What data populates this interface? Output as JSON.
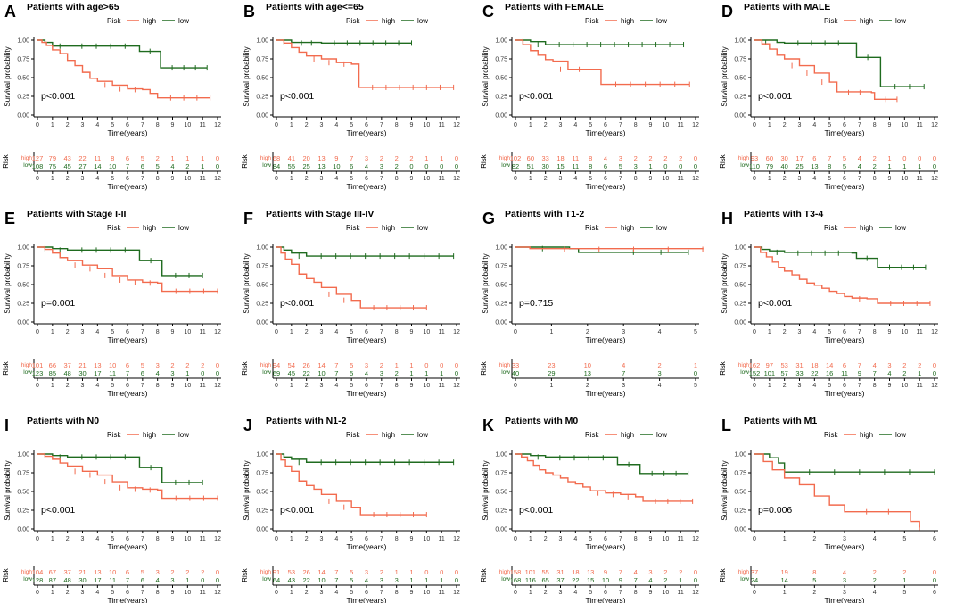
{
  "colors": {
    "high": "#F26B4E",
    "low": "#1F6B1F"
  },
  "risk_title": "Risk",
  "legend_high": "high",
  "legend_low": "low",
  "xlabel": "Time(years)",
  "ylabel": "Survival probability",
  "y_ticks": [
    "0.00",
    "0.25",
    "0.50",
    "0.75",
    "1.00"
  ],
  "risk_row_high": "high",
  "risk_row_low": "low",
  "chart_data": [
    {
      "letter": "A",
      "title": "Patients with age>65",
      "type": "line",
      "xmax": 12,
      "p": "p<0.001",
      "high_curve": [
        [
          0,
          1
        ],
        [
          0.3,
          0.97
        ],
        [
          0.6,
          0.93
        ],
        [
          1,
          0.87
        ],
        [
          1.5,
          0.82
        ],
        [
          2,
          0.73
        ],
        [
          2.5,
          0.66
        ],
        [
          3,
          0.57
        ],
        [
          3.5,
          0.49
        ],
        [
          4,
          0.45
        ],
        [
          5,
          0.4
        ],
        [
          6,
          0.35
        ],
        [
          7,
          0.34
        ],
        [
          7.5,
          0.29
        ],
        [
          8,
          0.23
        ],
        [
          11.5,
          0.23
        ]
      ],
      "low_curve": [
        [
          0,
          1
        ],
        [
          0.5,
          0.97
        ],
        [
          1,
          0.92
        ],
        [
          2,
          0.92
        ],
        [
          6.8,
          0.92
        ],
        [
          6.8,
          0.85
        ],
        [
          8.2,
          0.85
        ],
        [
          8.2,
          0.63
        ],
        [
          11.3,
          0.63
        ]
      ],
      "risk_high": [
        "127",
        "79",
        "43",
        "22",
        "11",
        "8",
        "6",
        "5",
        "2",
        "1",
        "1",
        "1",
        "0"
      ],
      "risk_low": [
        "108",
        "75",
        "45",
        "27",
        "14",
        "10",
        "7",
        "6",
        "5",
        "4",
        "2",
        "1",
        "0"
      ]
    },
    {
      "letter": "B",
      "title": "Patients with age<=65",
      "type": "line",
      "xmax": 12,
      "p": "p<0.001",
      "high_curve": [
        [
          0,
          1
        ],
        [
          0.5,
          0.96
        ],
        [
          1,
          0.9
        ],
        [
          1.5,
          0.84
        ],
        [
          2,
          0.79
        ],
        [
          3,
          0.75
        ],
        [
          4,
          0.7
        ],
        [
          5,
          0.68
        ],
        [
          5.5,
          0.37
        ],
        [
          11.8,
          0.37
        ]
      ],
      "low_curve": [
        [
          0,
          1
        ],
        [
          1,
          0.97
        ],
        [
          3,
          0.96
        ],
        [
          9,
          0.96
        ]
      ],
      "risk_high": [
        "68",
        "41",
        "20",
        "13",
        "9",
        "7",
        "3",
        "2",
        "2",
        "2",
        "1",
        "1",
        "0"
      ],
      "risk_low": [
        "84",
        "55",
        "25",
        "13",
        "10",
        "6",
        "4",
        "3",
        "2",
        "0",
        "0",
        "0",
        "0"
      ]
    },
    {
      "letter": "C",
      "title": "Patients with FEMALE",
      "type": "line",
      "xmax": 12,
      "p": "p<0.001",
      "high_curve": [
        [
          0,
          1
        ],
        [
          0.5,
          0.94
        ],
        [
          1,
          0.86
        ],
        [
          1.5,
          0.8
        ],
        [
          2,
          0.74
        ],
        [
          2.5,
          0.72
        ],
        [
          3.5,
          0.61
        ],
        [
          5,
          0.61
        ],
        [
          5.7,
          0.41
        ],
        [
          11.6,
          0.41
        ]
      ],
      "low_curve": [
        [
          0,
          1
        ],
        [
          1,
          0.98
        ],
        [
          2,
          0.94
        ],
        [
          11.2,
          0.94
        ]
      ],
      "risk_high": [
        "102",
        "60",
        "33",
        "18",
        "11",
        "8",
        "4",
        "3",
        "2",
        "2",
        "2",
        "2",
        "0"
      ],
      "risk_low": [
        "82",
        "51",
        "30",
        "15",
        "11",
        "8",
        "6",
        "5",
        "3",
        "1",
        "0",
        "0",
        "0"
      ]
    },
    {
      "letter": "D",
      "title": "Patients with MALE",
      "type": "line",
      "xmax": 12,
      "p": "p<0.001",
      "high_curve": [
        [
          0,
          1
        ],
        [
          0.5,
          0.95
        ],
        [
          1,
          0.88
        ],
        [
          1.5,
          0.8
        ],
        [
          2,
          0.75
        ],
        [
          3,
          0.66
        ],
        [
          4,
          0.56
        ],
        [
          5,
          0.44
        ],
        [
          5.5,
          0.31
        ],
        [
          7.8,
          0.3
        ],
        [
          8,
          0.21
        ],
        [
          9.5,
          0.21
        ]
      ],
      "low_curve": [
        [
          0,
          1
        ],
        [
          1.5,
          0.97
        ],
        [
          2,
          0.96
        ],
        [
          6.5,
          0.96
        ],
        [
          6.8,
          0.77
        ],
        [
          8.3,
          0.77
        ],
        [
          8.4,
          0.38
        ],
        [
          11.3,
          0.38
        ]
      ],
      "risk_high": [
        "93",
        "60",
        "30",
        "17",
        "6",
        "7",
        "5",
        "4",
        "2",
        "1",
        "0",
        "0",
        "0"
      ],
      "risk_low": [
        "110",
        "79",
        "40",
        "25",
        "13",
        "8",
        "5",
        "4",
        "2",
        "1",
        "1",
        "1",
        "0"
      ]
    },
    {
      "letter": "E",
      "title": "Patients with Stage I-II",
      "type": "line",
      "xmax": 12,
      "p": "p=0.001",
      "high_curve": [
        [
          0,
          1
        ],
        [
          0.5,
          0.97
        ],
        [
          1,
          0.92
        ],
        [
          1.5,
          0.86
        ],
        [
          2,
          0.82
        ],
        [
          3,
          0.76
        ],
        [
          4,
          0.71
        ],
        [
          5,
          0.62
        ],
        [
          6,
          0.56
        ],
        [
          7,
          0.53
        ],
        [
          8,
          0.52
        ],
        [
          8.3,
          0.41
        ],
        [
          12,
          0.41
        ]
      ],
      "low_curve": [
        [
          0,
          1
        ],
        [
          1,
          0.98
        ],
        [
          2,
          0.96
        ],
        [
          6.8,
          0.96
        ],
        [
          6.8,
          0.82
        ],
        [
          8.3,
          0.82
        ],
        [
          8.3,
          0.62
        ],
        [
          11,
          0.62
        ]
      ],
      "risk_high": [
        "101",
        "66",
        "37",
        "21",
        "13",
        "10",
        "6",
        "5",
        "3",
        "2",
        "2",
        "2",
        "0"
      ],
      "risk_low": [
        "123",
        "85",
        "48",
        "30",
        "17",
        "11",
        "7",
        "6",
        "4",
        "3",
        "1",
        "0",
        "0"
      ]
    },
    {
      "letter": "F",
      "title": "Patients with Stage III-IV",
      "type": "line",
      "xmax": 12,
      "p": "p<0.001",
      "high_curve": [
        [
          0,
          1
        ],
        [
          0.3,
          0.92
        ],
        [
          0.6,
          0.84
        ],
        [
          1,
          0.77
        ],
        [
          1.5,
          0.64
        ],
        [
          2,
          0.58
        ],
        [
          2.5,
          0.53
        ],
        [
          3,
          0.46
        ],
        [
          4,
          0.37
        ],
        [
          5,
          0.29
        ],
        [
          5.6,
          0.19
        ],
        [
          10,
          0.19
        ]
      ],
      "low_curve": [
        [
          0,
          1
        ],
        [
          0.5,
          0.96
        ],
        [
          1,
          0.92
        ],
        [
          2,
          0.88
        ],
        [
          11.8,
          0.88
        ]
      ],
      "risk_high": [
        "94",
        "54",
        "26",
        "14",
        "7",
        "5",
        "3",
        "2",
        "1",
        "1",
        "0",
        "0",
        "0"
      ],
      "risk_low": [
        "69",
        "45",
        "22",
        "10",
        "7",
        "5",
        "4",
        "3",
        "2",
        "1",
        "1",
        "1",
        "0"
      ]
    },
    {
      "letter": "G",
      "title": "Patients with T1-2",
      "type": "line",
      "xmax": 5,
      "p": "p=0.715",
      "high_curve": [
        [
          0,
          1
        ],
        [
          0.4,
          0.98
        ],
        [
          5.2,
          0.97
        ]
      ],
      "low_curve": [
        [
          0,
          1
        ],
        [
          1.5,
          0.98
        ],
        [
          1.75,
          0.93
        ],
        [
          4.8,
          0.93
        ]
      ],
      "risk_high": [
        "33",
        "",
        "23",
        "",
        "10",
        "",
        "4",
        "",
        "2",
        "",
        "1"
      ],
      "risk_low": [
        "40",
        "",
        "29",
        "",
        "13",
        "",
        "7",
        "",
        "3",
        "",
        "0"
      ]
    },
    {
      "letter": "H",
      "title": "Patients with T3-4",
      "type": "line",
      "xmax": 12,
      "p": "p<0.001",
      "high_curve": [
        [
          0,
          1
        ],
        [
          0.4,
          0.93
        ],
        [
          0.8,
          0.87
        ],
        [
          1.2,
          0.8
        ],
        [
          1.6,
          0.73
        ],
        [
          2,
          0.68
        ],
        [
          2.5,
          0.63
        ],
        [
          3,
          0.57
        ],
        [
          3.5,
          0.52
        ],
        [
          4,
          0.49
        ],
        [
          4.5,
          0.45
        ],
        [
          5,
          0.41
        ],
        [
          5.5,
          0.38
        ],
        [
          6,
          0.34
        ],
        [
          6.5,
          0.32
        ],
        [
          7.5,
          0.31
        ],
        [
          8.2,
          0.25
        ],
        [
          11.7,
          0.25
        ]
      ],
      "low_curve": [
        [
          0,
          1
        ],
        [
          0.5,
          0.97
        ],
        [
          1,
          0.95
        ],
        [
          2,
          0.93
        ],
        [
          6.5,
          0.92
        ],
        [
          6.8,
          0.85
        ],
        [
          8.2,
          0.85
        ],
        [
          8.2,
          0.73
        ],
        [
          11.4,
          0.73
        ]
      ],
      "risk_high": [
        "162",
        "97",
        "53",
        "31",
        "18",
        "14",
        "6",
        "7",
        "4",
        "3",
        "2",
        "2",
        "0"
      ],
      "risk_low": [
        "152",
        "101",
        "57",
        "33",
        "22",
        "16",
        "11",
        "9",
        "7",
        "4",
        "2",
        "1",
        "0"
      ]
    },
    {
      "letter": "I",
      "title": "Patients with N0",
      "type": "line",
      "xmax": 12,
      "p": "p<0.001",
      "high_curve": [
        [
          0,
          1
        ],
        [
          0.5,
          0.97
        ],
        [
          1,
          0.93
        ],
        [
          1.5,
          0.88
        ],
        [
          2,
          0.84
        ],
        [
          3,
          0.77
        ],
        [
          4,
          0.72
        ],
        [
          5,
          0.63
        ],
        [
          6,
          0.55
        ],
        [
          7,
          0.53
        ],
        [
          8,
          0.52
        ],
        [
          8.3,
          0.41
        ],
        [
          12,
          0.41
        ]
      ],
      "low_curve": [
        [
          0,
          1
        ],
        [
          1,
          0.98
        ],
        [
          2,
          0.96
        ],
        [
          6.8,
          0.96
        ],
        [
          6.8,
          0.82
        ],
        [
          8.3,
          0.82
        ],
        [
          8.3,
          0.62
        ],
        [
          11,
          0.62
        ]
      ],
      "risk_high": [
        "104",
        "67",
        "37",
        "21",
        "13",
        "10",
        "6",
        "5",
        "3",
        "2",
        "2",
        "2",
        "0"
      ],
      "risk_low": [
        "128",
        "87",
        "48",
        "30",
        "17",
        "11",
        "7",
        "6",
        "4",
        "3",
        "1",
        "0",
        "0"
      ]
    },
    {
      "letter": "J",
      "title": "Patients with N1-2",
      "type": "line",
      "xmax": 12,
      "p": "p<0.001",
      "high_curve": [
        [
          0,
          1
        ],
        [
          0.3,
          0.92
        ],
        [
          0.6,
          0.84
        ],
        [
          1,
          0.77
        ],
        [
          1.5,
          0.64
        ],
        [
          2,
          0.58
        ],
        [
          2.5,
          0.53
        ],
        [
          3,
          0.46
        ],
        [
          4,
          0.37
        ],
        [
          5,
          0.29
        ],
        [
          5.6,
          0.19
        ],
        [
          10,
          0.19
        ]
      ],
      "low_curve": [
        [
          0,
          1
        ],
        [
          0.5,
          0.96
        ],
        [
          1,
          0.93
        ],
        [
          2,
          0.89
        ],
        [
          11.8,
          0.89
        ]
      ],
      "risk_high": [
        "91",
        "53",
        "26",
        "14",
        "7",
        "5",
        "3",
        "2",
        "1",
        "1",
        "0",
        "0",
        "0"
      ],
      "risk_low": [
        "64",
        "43",
        "22",
        "10",
        "7",
        "5",
        "4",
        "3",
        "3",
        "1",
        "1",
        "1",
        "0"
      ]
    },
    {
      "letter": "K",
      "title": "Patients with M0",
      "type": "line",
      "xmax": 12,
      "p": "p<0.001",
      "high_curve": [
        [
          0,
          1
        ],
        [
          0.4,
          0.96
        ],
        [
          0.8,
          0.91
        ],
        [
          1.2,
          0.85
        ],
        [
          1.6,
          0.79
        ],
        [
          2,
          0.75
        ],
        [
          2.5,
          0.72
        ],
        [
          3,
          0.68
        ],
        [
          3.5,
          0.63
        ],
        [
          4,
          0.6
        ],
        [
          4.5,
          0.56
        ],
        [
          5,
          0.51
        ],
        [
          6,
          0.48
        ],
        [
          7,
          0.46
        ],
        [
          8,
          0.43
        ],
        [
          8.5,
          0.37
        ],
        [
          11.8,
          0.37
        ]
      ],
      "low_curve": [
        [
          0,
          1
        ],
        [
          1,
          0.98
        ],
        [
          2,
          0.96
        ],
        [
          6.8,
          0.95
        ],
        [
          6.8,
          0.86
        ],
        [
          8.3,
          0.86
        ],
        [
          8.3,
          0.74
        ],
        [
          11.5,
          0.74
        ]
      ],
      "risk_high": [
        "158",
        "101",
        "55",
        "31",
        "18",
        "13",
        "9",
        "7",
        "4",
        "3",
        "2",
        "2",
        "0"
      ],
      "risk_low": [
        "168",
        "116",
        "65",
        "37",
        "22",
        "15",
        "10",
        "9",
        "7",
        "4",
        "2",
        "1",
        "0"
      ]
    },
    {
      "letter": "L",
      "title": "Patients with M1",
      "type": "line",
      "xmax": 6,
      "p": "p=0.006",
      "high_curve": [
        [
          0,
          1
        ],
        [
          0.3,
          0.9
        ],
        [
          0.6,
          0.79
        ],
        [
          1,
          0.68
        ],
        [
          1.5,
          0.59
        ],
        [
          2,
          0.44
        ],
        [
          2.5,
          0.32
        ],
        [
          3,
          0.23
        ],
        [
          5.2,
          0.23
        ],
        [
          5.2,
          0.1
        ],
        [
          5.5,
          0.02
        ]
      ],
      "low_curve": [
        [
          0,
          1
        ],
        [
          0.5,
          0.95
        ],
        [
          0.8,
          0.88
        ],
        [
          1,
          0.76
        ],
        [
          6,
          0.76
        ]
      ],
      "risk_high": [
        "37",
        "",
        "19",
        "",
        "8",
        "",
        "4",
        "",
        "2",
        "",
        "2",
        "",
        "0"
      ],
      "risk_low": [
        "24",
        "",
        "14",
        "",
        "5",
        "",
        "3",
        "",
        "2",
        "",
        "1",
        "",
        "0"
      ]
    }
  ]
}
